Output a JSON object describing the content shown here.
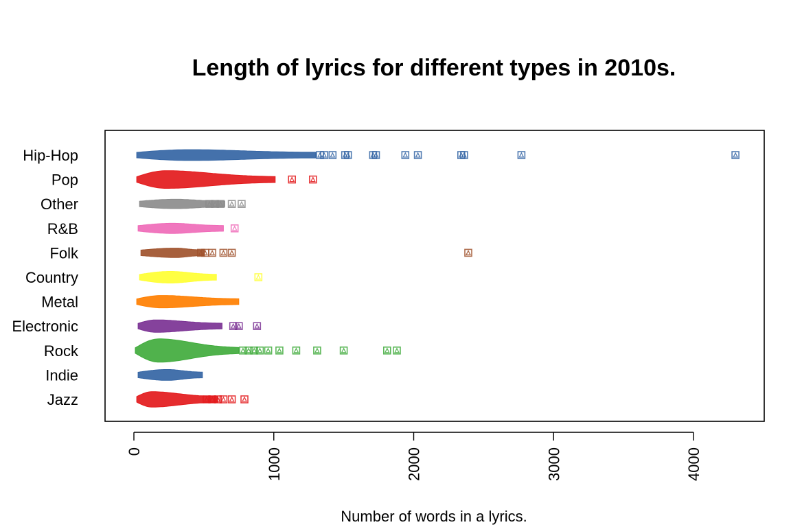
{
  "chart_data": {
    "type": "violin-strip",
    "title": "Length of lyrics for different types in 2010s.",
    "xlabel": "Number of words in a lyrics.",
    "ylabel": "",
    "xlim": [
      -200,
      4500
    ],
    "x_ticks": [
      0,
      1000,
      2000,
      3000,
      4000
    ],
    "x_tick_labels": [
      "0",
      "1000",
      "2000",
      "3000",
      "4000"
    ],
    "grid": false,
    "categories": [
      "Hip-Hop",
      "Pop",
      "Other",
      "R&B",
      "Folk",
      "Country",
      "Metal",
      "Electronic",
      "Rock",
      "Indie",
      "Jazz"
    ],
    "series": [
      {
        "name": "Hip-Hop",
        "color": "#3465a4",
        "core": [
          20,
          1300
        ],
        "peak": 400,
        "width": 0.45,
        "outliers": [
          1330,
          1360,
          1420,
          1510,
          1530,
          1710,
          1730,
          1940,
          2030,
          2340,
          2360,
          2770,
          4300
        ]
      },
      {
        "name": "Pop",
        "color": "#e31a1c",
        "core": [
          20,
          1010
        ],
        "peak": 230,
        "width": 0.9,
        "outliers": [
          1130,
          1280
        ]
      },
      {
        "name": "Other",
        "color": "#8c8c8c",
        "core": [
          40,
          650
        ],
        "peak": 300,
        "width": 0.35,
        "outliers": [
          540,
          580,
          620,
          700,
          770
        ]
      },
      {
        "name": "R&B",
        "color": "#ef6bb8",
        "core": [
          30,
          640
        ],
        "peak": 280,
        "width": 0.4,
        "outliers": [
          720
        ]
      },
      {
        "name": "Folk",
        "color": "#a0522d",
        "core": [
          50,
          500
        ],
        "peak": 300,
        "width": 0.35,
        "outliers": [
          480,
          510,
          560,
          640,
          700,
          2390
        ]
      },
      {
        "name": "Country",
        "color": "#ffff33",
        "core": [
          40,
          590
        ],
        "peak": 260,
        "width": 0.5,
        "outliers": [
          890
        ]
      },
      {
        "name": "Metal",
        "color": "#ff7f00",
        "core": [
          20,
          750
        ],
        "peak": 200,
        "width": 0.55,
        "outliers": []
      },
      {
        "name": "Electronic",
        "color": "#7b3294",
        "core": [
          30,
          630
        ],
        "peak": 160,
        "width": 0.55,
        "outliers": [
          710,
          750,
          880
        ]
      },
      {
        "name": "Rock",
        "color": "#41ab3d",
        "core": [
          10,
          750
        ],
        "peak": 180,
        "width": 1.4,
        "outliers": [
          780,
          820,
          860,
          900,
          960,
          1040,
          1160,
          1310,
          1500,
          1810,
          1880
        ]
      },
      {
        "name": "Indie",
        "color": "#3465a4",
        "core": [
          30,
          490
        ],
        "peak": 240,
        "width": 0.45,
        "outliers": []
      },
      {
        "name": "Jazz",
        "color": "#e31a1c",
        "core": [
          20,
          600
        ],
        "peak": 130,
        "width": 0.75,
        "outliers": [
          520,
          560,
          600,
          640,
          700,
          790
        ]
      }
    ]
  }
}
